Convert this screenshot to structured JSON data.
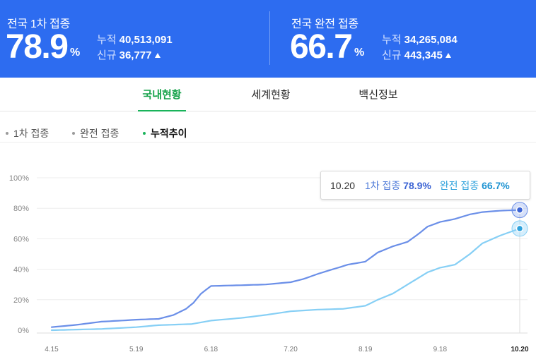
{
  "header": {
    "first": {
      "title": "전국 1차 접종",
      "rate": "78.9",
      "unit": "%",
      "total_label": "누적",
      "total_value": "40,513,091",
      "new_label": "신규",
      "new_value": "36,777"
    },
    "full": {
      "title": "전국 완전 접종",
      "rate": "66.7",
      "unit": "%",
      "total_label": "누적",
      "total_value": "34,265,084",
      "new_label": "신규",
      "new_value": "443,345"
    }
  },
  "tabs": [
    "국내현황",
    "세계현황",
    "백신정보"
  ],
  "active_tab": "국내현황",
  "subtabs": [
    "1차 접종",
    "완전 접종",
    "누적추이"
  ],
  "active_subtab": "누적추이",
  "tooltip": {
    "date": "10.20",
    "first_label": "1차 접종",
    "first_value": "78.9%",
    "full_label": "완전 접종",
    "full_value": "66.7%"
  },
  "colors": {
    "header_bg": "#2d6cf0",
    "first_line": "#6b8fe8",
    "full_line": "#86cff5",
    "accent_green": "#19b35a"
  },
  "chart_data": {
    "type": "line",
    "ylim": [
      0,
      100
    ],
    "yticks": [
      "100%",
      "80%",
      "60%",
      "40%",
      "20%",
      "0%"
    ],
    "xticks": [
      "4.15",
      "5.19",
      "6.18",
      "7.20",
      "8.19",
      "9.18",
      "10.20"
    ],
    "highlight": "10.20",
    "series": [
      {
        "name": "1차 접종",
        "points": [
          [
            "4.15",
            2.0
          ],
          [
            "4.25",
            3.5
          ],
          [
            "5.05",
            5.6
          ],
          [
            "5.15",
            6.5
          ],
          [
            "5.19",
            6.9
          ],
          [
            "5.28",
            7.4
          ],
          [
            "6.03",
            10.0
          ],
          [
            "6.08",
            14.0
          ],
          [
            "6.11",
            18.0
          ],
          [
            "6.14",
            24.0
          ],
          [
            "6.18",
            29.0
          ],
          [
            "6.30",
            29.5
          ],
          [
            "7.10",
            30.0
          ],
          [
            "7.20",
            31.5
          ],
          [
            "7.25",
            33.5
          ],
          [
            "7.31",
            37.0
          ],
          [
            "8.06",
            40.0
          ],
          [
            "8.12",
            43.0
          ],
          [
            "8.19",
            45.0
          ],
          [
            "8.24",
            51.0
          ],
          [
            "8.30",
            55.0
          ],
          [
            "9.05",
            58.0
          ],
          [
            "9.10",
            64.0
          ],
          [
            "9.13",
            68.0
          ],
          [
            "9.18",
            71.0
          ],
          [
            "9.24",
            73.0
          ],
          [
            "9.30",
            76.0
          ],
          [
            "10.05",
            77.5
          ],
          [
            "10.12",
            78.4
          ],
          [
            "10.20",
            78.9
          ]
        ]
      },
      {
        "name": "완전 접종",
        "points": [
          [
            "4.15",
            0.0
          ],
          [
            "5.05",
            0.8
          ],
          [
            "5.19",
            2.0
          ],
          [
            "5.28",
            3.3
          ],
          [
            "6.10",
            4.0
          ],
          [
            "6.18",
            6.3
          ],
          [
            "6.30",
            8.0
          ],
          [
            "7.10",
            10.0
          ],
          [
            "7.20",
            12.4
          ],
          [
            "7.31",
            13.5
          ],
          [
            "8.10",
            14.0
          ],
          [
            "8.19",
            16.0
          ],
          [
            "8.24",
            20.0
          ],
          [
            "8.30",
            24.0
          ],
          [
            "9.05",
            30.0
          ],
          [
            "9.10",
            35.0
          ],
          [
            "9.13",
            38.0
          ],
          [
            "9.18",
            41.0
          ],
          [
            "9.24",
            43.0
          ],
          [
            "9.30",
            50.0
          ],
          [
            "10.05",
            57.0
          ],
          [
            "10.12",
            62.0
          ],
          [
            "10.20",
            66.7
          ]
        ]
      }
    ]
  }
}
